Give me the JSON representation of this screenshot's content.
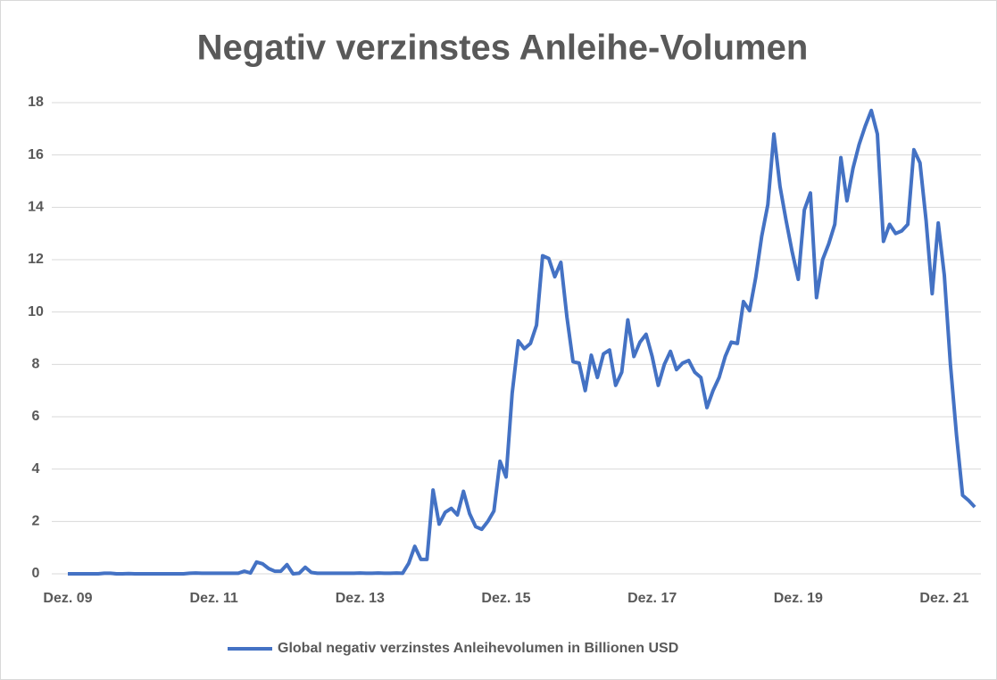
{
  "chart_data": {
    "type": "line",
    "title": "Negativ verzinstes Anleihe-Volumen",
    "categories": [
      "Dez. 09",
      null,
      null,
      null,
      null,
      null,
      null,
      null,
      null,
      null,
      null,
      null,
      null,
      null,
      null,
      null,
      null,
      null,
      null,
      null,
      null,
      null,
      null,
      null,
      "Dez. 11",
      null,
      null,
      null,
      null,
      null,
      null,
      null,
      null,
      null,
      null,
      null,
      null,
      null,
      null,
      null,
      null,
      null,
      null,
      null,
      null,
      null,
      null,
      null,
      "Dez. 13",
      null,
      null,
      null,
      null,
      null,
      null,
      null,
      null,
      null,
      null,
      null,
      null,
      null,
      null,
      null,
      null,
      null,
      null,
      null,
      null,
      null,
      null,
      null,
      "Dez. 15",
      null,
      null,
      null,
      null,
      null,
      null,
      null,
      null,
      null,
      null,
      null,
      null,
      null,
      null,
      null,
      null,
      null,
      null,
      null,
      null,
      null,
      null,
      null,
      "Dez. 17",
      null,
      null,
      null,
      null,
      null,
      null,
      null,
      null,
      null,
      null,
      null,
      null,
      null,
      null,
      null,
      null,
      null,
      null,
      null,
      null,
      null,
      null,
      null,
      "Dez. 19",
      null,
      null,
      null,
      null,
      null,
      null,
      null,
      null,
      null,
      null,
      null,
      null,
      null,
      null,
      null,
      null,
      null,
      null,
      null,
      null,
      null,
      null,
      null,
      "Dez. 21",
      null,
      null,
      null,
      null,
      null
    ],
    "series": [
      {
        "name": "Global negativ verzinstes Anleihevolumen in Billionen USD",
        "color": "#4472c4",
        "values": [
          0,
          0,
          0,
          0,
          0,
          0,
          0.02,
          0.02,
          0,
          0,
          0.01,
          0,
          0,
          0,
          0,
          0,
          0,
          0,
          0,
          0,
          0.02,
          0.03,
          0.02,
          0.02,
          0.02,
          0.02,
          0.02,
          0.02,
          0.02,
          0.1,
          0.03,
          0.45,
          0.38,
          0.2,
          0.1,
          0.1,
          0.35,
          0,
          0.02,
          0.25,
          0.05,
          0.02,
          0.02,
          0.02,
          0.02,
          0.02,
          0.02,
          0.02,
          0.03,
          0.02,
          0.02,
          0.03,
          0.02,
          0.02,
          0.03,
          0.02,
          0.4,
          1.05,
          0.55,
          0.55,
          3.2,
          1.9,
          2.35,
          2.5,
          2.25,
          3.15,
          2.3,
          1.8,
          1.7,
          2.0,
          2.4,
          4.3,
          3.7,
          6.9,
          8.9,
          8.6,
          8.8,
          9.5,
          12.15,
          12.05,
          11.35,
          11.9,
          9.8,
          8.1,
          8.05,
          7.0,
          8.35,
          7.5,
          8.4,
          8.55,
          7.2,
          7.7,
          9.7,
          8.3,
          8.85,
          9.15,
          8.3,
          7.2,
          8.0,
          8.5,
          7.8,
          8.05,
          8.15,
          7.7,
          7.5,
          6.35,
          7.0,
          7.5,
          8.3,
          8.85,
          8.8,
          10.4,
          10.05,
          11.3,
          12.9,
          14.1,
          16.8,
          14.8,
          13.5,
          12.3,
          11.25,
          13.9,
          14.55,
          10.55,
          12.0,
          12.6,
          13.35,
          15.9,
          14.25,
          15.5,
          16.4,
          17.1,
          17.7,
          16.8,
          12.7,
          13.35,
          13.0,
          13.1,
          13.35,
          16.2,
          15.7,
          13.5,
          10.7,
          13.4,
          11.4,
          8.0,
          5.3,
          3.0,
          2.8,
          2.55
        ]
      }
    ],
    "ylim": [
      0,
      18
    ],
    "yticks": [
      0,
      2,
      4,
      6,
      8,
      10,
      12,
      14,
      16,
      18
    ],
    "grid": true,
    "legend": "bottom"
  }
}
